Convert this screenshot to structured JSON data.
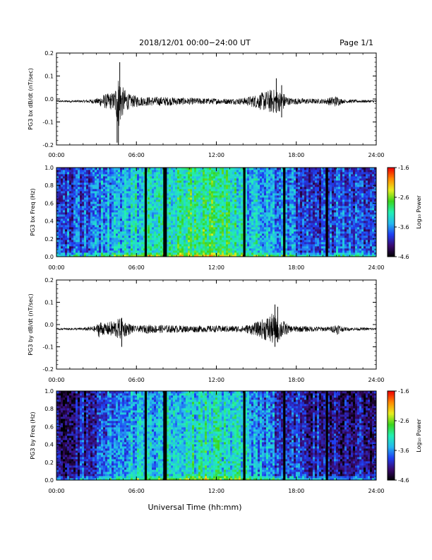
{
  "header": {
    "title": "2018/12/01  00:00−24:00 UT",
    "page": "Page 1/1"
  },
  "footer": {
    "xlabel": "Universal Time (hh:mm)"
  },
  "colors": {
    "trace": "#000000",
    "gap": "#000000",
    "colormap": [
      "#000000",
      "#3a0a6e",
      "#1f3ef2",
      "#25b8ef",
      "#22f0b4",
      "#3ad51e",
      "#e8ee20",
      "#ff8a00",
      "#f00000"
    ]
  },
  "chart_data": [
    {
      "type": "line",
      "id": "bx-waveform",
      "ylabel": "PG3 bx dB/dt (nT/sec)",
      "xlim": [
        0,
        24
      ],
      "ylim": [
        -0.2,
        0.2
      ],
      "x_ticks": [
        "00:00",
        "06:00",
        "12:00",
        "18:00",
        "24:00"
      ],
      "y_ticks": [
        "-0.2",
        "-0.1",
        "0.0",
        "0.1",
        "0.2"
      ],
      "y_tick_values": [
        -0.2,
        -0.1,
        0.0,
        0.1,
        0.2
      ],
      "baseline": -0.01,
      "activity": [
        {
          "t": 0.0,
          "amp": 0.004
        },
        {
          "t": 2.0,
          "amp": 0.005
        },
        {
          "t": 3.0,
          "amp": 0.012
        },
        {
          "t": 3.5,
          "amp": 0.03
        },
        {
          "t": 4.3,
          "amp": 0.04
        },
        {
          "t": 4.7,
          "amp": 0.12
        },
        {
          "t": 5.0,
          "amp": 0.06
        },
        {
          "t": 5.5,
          "amp": 0.03
        },
        {
          "t": 6.5,
          "amp": 0.02
        },
        {
          "t": 8.0,
          "amp": 0.02
        },
        {
          "t": 10.0,
          "amp": 0.015
        },
        {
          "t": 13.0,
          "amp": 0.012
        },
        {
          "t": 14.0,
          "amp": 0.015
        },
        {
          "t": 15.0,
          "amp": 0.03
        },
        {
          "t": 16.2,
          "amp": 0.055
        },
        {
          "t": 17.0,
          "amp": 0.04
        },
        {
          "t": 17.5,
          "amp": 0.015
        },
        {
          "t": 20.0,
          "amp": 0.01
        },
        {
          "t": 21.0,
          "amp": 0.025
        },
        {
          "t": 21.5,
          "amp": 0.008
        },
        {
          "t": 24.0,
          "amp": 0.005
        }
      ],
      "spikes": [
        {
          "t": 4.55,
          "min": -0.19,
          "max": 0.0
        },
        {
          "t": 4.65,
          "min": -0.2,
          "max": 0.04
        },
        {
          "t": 4.75,
          "min": -0.05,
          "max": 0.16
        },
        {
          "t": 16.5,
          "min": -0.06,
          "max": 0.09
        },
        {
          "t": 16.9,
          "min": -0.08,
          "max": 0.06
        }
      ]
    },
    {
      "type": "heatmap",
      "id": "bx-spectrogram",
      "ylabel": "PG3 bx Freq (Hz)",
      "xlim": [
        0,
        24
      ],
      "ylim": [
        0,
        1
      ],
      "x_ticks": [
        "00:00",
        "06:00",
        "12:00",
        "18:00",
        "24:00"
      ],
      "y_ticks": [
        "0.0",
        "0.2",
        "0.4",
        "0.6",
        "0.8",
        "1.0"
      ],
      "y_tick_values": [
        0,
        0.2,
        0.4,
        0.6,
        0.8,
        1.0
      ],
      "colorbar": {
        "label": "Log₁₀ Power",
        "range": [
          -4.6,
          -1.6
        ],
        "ticks": [
          "-1.6",
          "-2.6",
          "-3.6",
          "-4.6"
        ],
        "tick_values": [
          -1.6,
          -2.6,
          -3.6,
          -4.6
        ]
      },
      "gaps": [
        6.7,
        8.1,
        8.2,
        14.1,
        17.1,
        20.3
      ],
      "power_profile": [
        {
          "t": 0.0,
          "p": -3.9
        },
        {
          "t": 2.0,
          "p": -3.7
        },
        {
          "t": 4.0,
          "p": -3.5
        },
        {
          "t": 6.0,
          "p": -3.2
        },
        {
          "t": 8.0,
          "p": -3.05
        },
        {
          "t": 10.0,
          "p": -2.95
        },
        {
          "t": 11.5,
          "p": -2.85
        },
        {
          "t": 13.0,
          "p": -3.0
        },
        {
          "t": 14.5,
          "p": -3.3
        },
        {
          "t": 16.0,
          "p": -3.4
        },
        {
          "t": 17.5,
          "p": -3.6
        },
        {
          "t": 19.0,
          "p": -3.85
        },
        {
          "t": 21.0,
          "p": -3.75
        },
        {
          "t": 24.0,
          "p": -3.8
        }
      ]
    },
    {
      "type": "line",
      "id": "by-waveform",
      "ylabel": "PG3 by dB/dt (nT/sec)",
      "xlim": [
        0,
        24
      ],
      "ylim": [
        -0.2,
        0.2
      ],
      "x_ticks": [
        "00:00",
        "06:00",
        "12:00",
        "18:00",
        "24:00"
      ],
      "y_ticks": [
        "-0.2",
        "-0.1",
        "0.0",
        "0.1",
        "0.2"
      ],
      "y_tick_values": [
        -0.2,
        -0.1,
        0.0,
        0.1,
        0.2
      ],
      "baseline": -0.02,
      "activity": [
        {
          "t": 0.0,
          "amp": 0.004
        },
        {
          "t": 2.0,
          "amp": 0.006
        },
        {
          "t": 3.0,
          "amp": 0.015
        },
        {
          "t": 3.2,
          "amp": 0.04
        },
        {
          "t": 3.6,
          "amp": 0.025
        },
        {
          "t": 4.8,
          "amp": 0.05
        },
        {
          "t": 5.3,
          "amp": 0.03
        },
        {
          "t": 6.0,
          "amp": 0.012
        },
        {
          "t": 6.8,
          "amp": 0.02
        },
        {
          "t": 10.0,
          "amp": 0.015
        },
        {
          "t": 14.0,
          "amp": 0.015
        },
        {
          "t": 15.0,
          "amp": 0.03
        },
        {
          "t": 16.2,
          "amp": 0.07
        },
        {
          "t": 16.8,
          "amp": 0.05
        },
        {
          "t": 17.5,
          "amp": 0.015
        },
        {
          "t": 20.5,
          "amp": 0.01
        },
        {
          "t": 21.1,
          "amp": 0.025
        },
        {
          "t": 21.6,
          "amp": 0.008
        },
        {
          "t": 24.0,
          "amp": 0.005
        }
      ],
      "spikes": [
        {
          "t": 4.9,
          "min": -0.1,
          "max": 0.03
        },
        {
          "t": 16.4,
          "min": -0.1,
          "max": 0.09
        },
        {
          "t": 16.6,
          "min": -0.08,
          "max": 0.08
        }
      ]
    },
    {
      "type": "heatmap",
      "id": "by-spectrogram",
      "ylabel": "PG3 by Freq (Hz)",
      "xlim": [
        0,
        24
      ],
      "ylim": [
        0,
        1
      ],
      "x_ticks": [
        "00:00",
        "06:00",
        "12:00",
        "18:00",
        "24:00"
      ],
      "y_ticks": [
        "0.0",
        "0.2",
        "0.4",
        "0.6",
        "0.8",
        "1.0"
      ],
      "y_tick_values": [
        0,
        0.2,
        0.4,
        0.6,
        0.8,
        1.0
      ],
      "colorbar": {
        "label": "Log₁₀ Power",
        "range": [
          -4.6,
          -1.6
        ],
        "ticks": [
          "-1.6",
          "-2.6",
          "-3.6",
          "-4.6"
        ],
        "tick_values": [
          -1.6,
          -2.6,
          -3.6,
          -4.6
        ]
      },
      "gaps": [
        6.7,
        8.1,
        8.2,
        14.1,
        17.1,
        20.3
      ],
      "power_profile": [
        {
          "t": 0.0,
          "p": -4.2
        },
        {
          "t": 2.0,
          "p": -4.0
        },
        {
          "t": 4.0,
          "p": -3.7
        },
        {
          "t": 6.0,
          "p": -3.4
        },
        {
          "t": 8.0,
          "p": -3.25
        },
        {
          "t": 10.0,
          "p": -3.15
        },
        {
          "t": 12.0,
          "p": -3.1
        },
        {
          "t": 14.0,
          "p": -3.3
        },
        {
          "t": 16.0,
          "p": -3.6
        },
        {
          "t": 18.0,
          "p": -3.9
        },
        {
          "t": 20.0,
          "p": -4.0
        },
        {
          "t": 24.0,
          "p": -4.1
        }
      ]
    }
  ]
}
